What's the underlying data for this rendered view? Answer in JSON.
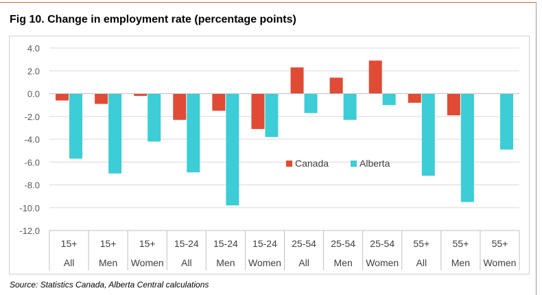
{
  "title": "Fig 10. Change in employment rate (percentage points)",
  "source": "Source: Statistics Canada, Alberta Central calculations",
  "colors": {
    "canada": "#e04b35",
    "alberta": "#3ccdd6"
  },
  "chart_data": {
    "type": "bar",
    "title": "Fig 10. Change in employment rate (percentage points)",
    "xlabel": "",
    "ylabel": "",
    "ylim": [
      -12,
      4
    ],
    "yticks": [
      4,
      2,
      0,
      -2,
      -4,
      -6,
      -8,
      -10,
      -12
    ],
    "ytick_labels": [
      "4.0",
      "2.0",
      "0.0",
      "-2.0",
      "-4.0",
      "-6.0",
      "-8.0",
      "-10.0",
      "-12.0"
    ],
    "grid": true,
    "legend_position": "center-right",
    "categories": [
      {
        "age": "15+",
        "sex": "All"
      },
      {
        "age": "15+",
        "sex": "Men"
      },
      {
        "age": "15+",
        "sex": "Women"
      },
      {
        "age": "15-24",
        "sex": "All"
      },
      {
        "age": "15-24",
        "sex": "Men"
      },
      {
        "age": "15-24",
        "sex": "Women"
      },
      {
        "age": "25-54",
        "sex": "All"
      },
      {
        "age": "25-54",
        "sex": "Men"
      },
      {
        "age": "25-54",
        "sex": "Women"
      },
      {
        "age": "55+",
        "sex": "All"
      },
      {
        "age": "55+",
        "sex": "Men"
      },
      {
        "age": "55+",
        "sex": "Women"
      }
    ],
    "series": [
      {
        "name": "Canada",
        "color": "#e04b35",
        "values": [
          -0.6,
          -0.9,
          -0.2,
          -2.3,
          -1.5,
          -3.1,
          2.3,
          1.4,
          2.9,
          -0.8,
          -1.9,
          0.0
        ]
      },
      {
        "name": "Alberta",
        "color": "#3ccdd6",
        "values": [
          -5.7,
          -7.0,
          -4.2,
          -6.9,
          -9.8,
          -3.8,
          -1.7,
          -2.3,
          -1.0,
          -7.2,
          -9.5,
          -4.9
        ]
      }
    ]
  }
}
